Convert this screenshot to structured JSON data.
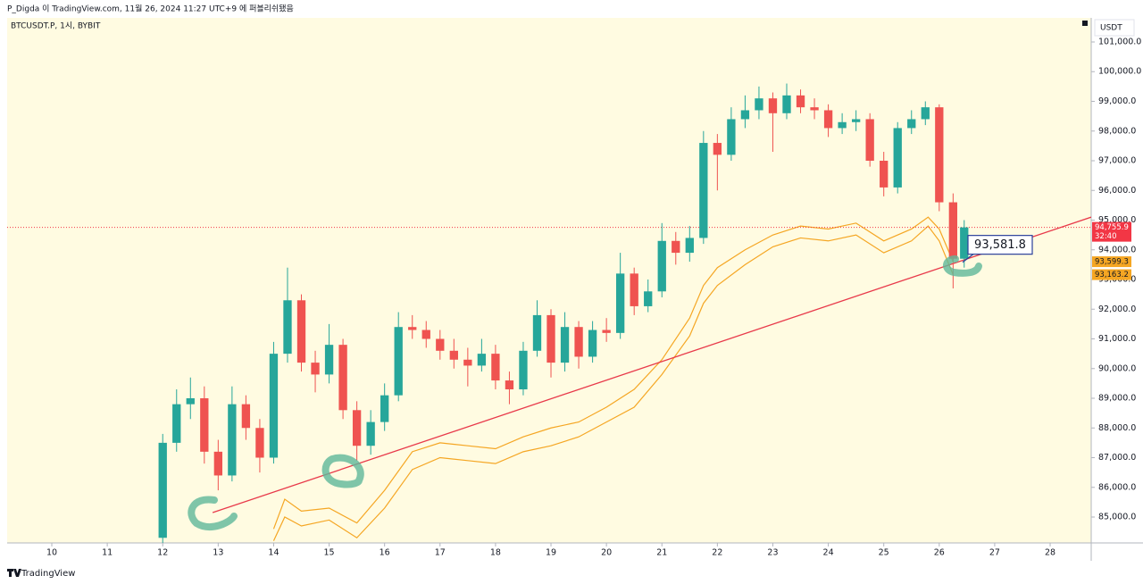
{
  "chart_data": {
    "type": "candlestick",
    "header": "P_Digda 이 TradingView.com, 11월 26, 2024 11:27 UTC+9 에 퍼블리쉬됐음",
    "symbol": "BTCUSDT.P, 1시, BYBIT",
    "currency": "USDT",
    "footer": "TradingView",
    "xlim": [
      9.195,
      28.74
    ],
    "xticks": [
      10,
      11,
      12,
      13,
      14,
      15,
      16,
      17,
      18,
      19,
      20,
      21,
      22,
      23,
      24,
      25,
      26,
      27,
      28
    ],
    "ylim": [
      84128,
      101812
    ],
    "yticks": [
      {
        "value": 85000,
        "label": "85,000.0"
      },
      {
        "value": 86000,
        "label": "86,000.0"
      },
      {
        "value": 87000,
        "label": "87,000.0"
      },
      {
        "value": 88000,
        "label": "88,000.0"
      },
      {
        "value": 89000,
        "label": "89,000.0"
      },
      {
        "value": 90000,
        "label": "90,000.0"
      },
      {
        "value": 91000,
        "label": "91,000.0"
      },
      {
        "value": 92000,
        "label": "92,000.0"
      },
      {
        "value": 93000,
        "label": "93,000.0"
      },
      {
        "value": 94000,
        "label": "94,000.0"
      },
      {
        "value": 95000,
        "label": "95,000.0"
      },
      {
        "value": 96000,
        "label": "96,000.0"
      },
      {
        "value": 97000,
        "label": "97,000.0"
      },
      {
        "value": 98000,
        "label": "98,000.0"
      },
      {
        "value": 99000,
        "label": "99,000.0"
      },
      {
        "value": 100000,
        "label": "100,000.0"
      },
      {
        "value": 101000,
        "label": "101,000.0"
      }
    ],
    "grid": false,
    "up_color": "#26a69a",
    "down_color": "#ef5350",
    "candles": {
      "x": [
        12.0,
        12.25,
        12.5,
        12.75,
        13.0,
        13.25,
        13.5,
        13.75,
        14.0,
        14.25,
        14.5,
        14.75,
        15.0,
        15.25,
        15.5,
        15.75,
        16.0,
        16.25,
        16.5,
        16.75,
        17.0,
        17.25,
        17.5,
        17.75,
        18.0,
        18.25,
        18.5,
        18.75,
        19.0,
        19.25,
        19.5,
        19.75,
        20.0,
        20.25,
        20.5,
        20.75,
        21.0,
        21.25,
        21.5,
        21.75,
        22.0,
        22.25,
        22.5,
        22.75,
        23.0,
        23.25,
        23.5,
        23.75,
        24.0,
        24.25,
        24.5,
        24.75,
        25.0,
        25.25,
        25.5,
        25.75,
        26.0,
        26.25,
        26.45
      ],
      "open": [
        84300,
        87500,
        88800,
        89000,
        87200,
        86400,
        88800,
        88000,
        87000,
        90500,
        92300,
        90200,
        89800,
        90800,
        88600,
        87400,
        88200,
        89100,
        91400,
        91300,
        91000,
        90600,
        90300,
        90100,
        90500,
        89600,
        89300,
        90600,
        91800,
        90200,
        91400,
        90400,
        91300,
        91200,
        93200,
        92100,
        92600,
        94300,
        93900,
        94400,
        97600,
        97200,
        98400,
        98700,
        99100,
        98600,
        99200,
        98800,
        98700,
        98100,
        98300,
        98400,
        97000,
        96100,
        98100,
        98400,
        98800,
        95600,
        93700
      ],
      "high": [
        87800,
        89300,
        89700,
        89400,
        87600,
        89400,
        89100,
        88300,
        90900,
        93400,
        92500,
        90600,
        91500,
        91000,
        88900,
        88600,
        89500,
        91900,
        91800,
        91600,
        91300,
        91000,
        90700,
        91000,
        90800,
        89900,
        90900,
        92300,
        92000,
        91900,
        91600,
        91600,
        91700,
        93900,
        93400,
        93000,
        94900,
        94600,
        94800,
        98000,
        97900,
        98800,
        99200,
        99500,
        99300,
        99600,
        99400,
        99100,
        98900,
        98600,
        98700,
        98600,
        97300,
        98300,
        98700,
        99000,
        98900,
        95900,
        95000
      ],
      "low": [
        84100,
        87200,
        88300,
        86800,
        85900,
        86200,
        87600,
        86500,
        86800,
        90200,
        89900,
        89200,
        89500,
        88300,
        86900,
        87100,
        87900,
        88900,
        91000,
        90700,
        90300,
        90000,
        89400,
        89900,
        89300,
        88800,
        89100,
        90400,
        89700,
        89900,
        90000,
        90200,
        90900,
        91000,
        91800,
        91900,
        92400,
        93500,
        93600,
        94200,
        96000,
        97000,
        98100,
        98400,
        97300,
        98400,
        98600,
        98400,
        97800,
        97900,
        98000,
        96800,
        95800,
        95900,
        97900,
        98200,
        95300,
        92700,
        93400
      ],
      "close": [
        87500,
        88800,
        89000,
        87200,
        86400,
        88800,
        88000,
        87000,
        90500,
        92300,
        90200,
        89800,
        90800,
        88600,
        87400,
        88200,
        89100,
        91400,
        91300,
        91000,
        90600,
        90300,
        90100,
        90500,
        89600,
        89300,
        90600,
        91800,
        90200,
        91400,
        90400,
        91300,
        91200,
        93200,
        92100,
        92600,
        94300,
        93900,
        94400,
        97600,
        97200,
        98400,
        98700,
        99100,
        98600,
        99200,
        98800,
        98700,
        98100,
        98300,
        98400,
        97000,
        96100,
        98100,
        98400,
        98800,
        95600,
        93700,
        94755.9
      ]
    },
    "bands": [
      {
        "color": "#f5a623",
        "last_label": "93,599.3",
        "x": [
          14.0,
          14.2,
          14.5,
          15.0,
          15.5,
          16.0,
          16.5,
          17.0,
          17.5,
          18.0,
          18.5,
          19.0,
          19.5,
          20.0,
          20.5,
          21.0,
          21.5,
          21.75,
          22.0,
          22.5,
          23.0,
          23.5,
          24.0,
          24.5,
          25.0,
          25.5,
          25.8,
          26.0,
          26.25
        ],
        "values": [
          84600,
          85600,
          85200,
          85300,
          84800,
          85900,
          87200,
          87500,
          87400,
          87300,
          87700,
          88000,
          88200,
          88700,
          89300,
          90300,
          91700,
          92800,
          93400,
          94000,
          94500,
          94800,
          94700,
          94900,
          94300,
          94700,
          95100,
          94700,
          93599.3
        ]
      },
      {
        "color": "#f5a623",
        "last_label": "93,163.2",
        "x": [
          14.0,
          14.2,
          14.5,
          15.0,
          15.5,
          16.0,
          16.5,
          17.0,
          17.5,
          18.0,
          18.5,
          19.0,
          19.5,
          20.0,
          20.5,
          21.0,
          21.5,
          21.75,
          22.0,
          22.5,
          23.0,
          23.5,
          24.0,
          24.5,
          25.0,
          25.5,
          25.8,
          26.0,
          26.25
        ],
        "values": [
          84200,
          85000,
          84700,
          84900,
          84300,
          85300,
          86600,
          87000,
          86900,
          86800,
          87200,
          87400,
          87700,
          88200,
          88700,
          89800,
          91100,
          92200,
          92800,
          93500,
          94100,
          94400,
          94300,
          94500,
          93900,
          94300,
          94800,
          94300,
          93163.2
        ]
      }
    ],
    "trendline": {
      "color": "#e8394a",
      "x": [
        12.9,
        28.74
      ],
      "y": [
        85150,
        95100
      ]
    },
    "price_line": {
      "value": 94755.9,
      "label": "94,755.9",
      "countdown": "32:40",
      "color": "#f23645"
    },
    "annotation": {
      "value": 93581.8,
      "label": "93,581.8"
    }
  }
}
